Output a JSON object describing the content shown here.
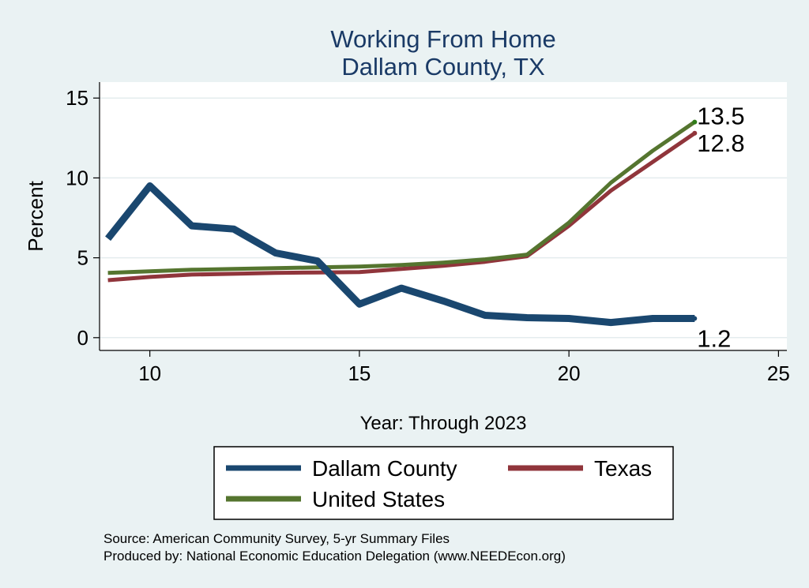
{
  "chart_data": {
    "type": "line",
    "title": "Working From Home",
    "subtitle": "Dallam County, TX",
    "xlabel": "Year: Through 2023",
    "ylabel": "Percent",
    "xlim": [
      8.8,
      25.2
    ],
    "ylim": [
      -0.8,
      16
    ],
    "xticks": [
      10,
      15,
      20,
      25
    ],
    "yticks": [
      0,
      5,
      10,
      15
    ],
    "grid": true,
    "legend_position": "bottom",
    "x": [
      9,
      10,
      11,
      12,
      13,
      14,
      15,
      16,
      17,
      18,
      19,
      20,
      21,
      22,
      23
    ],
    "series": [
      {
        "name": "Dallam County",
        "color": "#1a476f",
        "values": [
          6.2,
          9.5,
          7.0,
          6.8,
          5.3,
          4.8,
          2.1,
          3.1,
          2.3,
          1.4,
          1.25,
          1.2,
          0.95,
          1.2,
          1.2
        ],
        "end_label": "1.2"
      },
      {
        "name": "Texas",
        "color": "#90353b",
        "values": [
          3.6,
          3.8,
          3.95,
          4.0,
          4.05,
          4.08,
          4.1,
          4.3,
          4.5,
          4.75,
          5.1,
          7.0,
          9.2,
          11.0,
          12.8
        ],
        "end_label": "12.8"
      },
      {
        "name": "United States",
        "color": "#55752f",
        "values": [
          4.05,
          4.15,
          4.25,
          4.3,
          4.35,
          4.4,
          4.45,
          4.55,
          4.7,
          4.9,
          5.2,
          7.2,
          9.7,
          11.7,
          13.5
        ],
        "end_label": "13.5"
      }
    ],
    "legend": [
      "Dallam County",
      "Texas",
      "United States"
    ],
    "notes": [
      "Source: American Community Survey, 5-yr Summary Files",
      "Produced by: National Economic Education Delegation (www.NEEDEcon.org)"
    ]
  }
}
